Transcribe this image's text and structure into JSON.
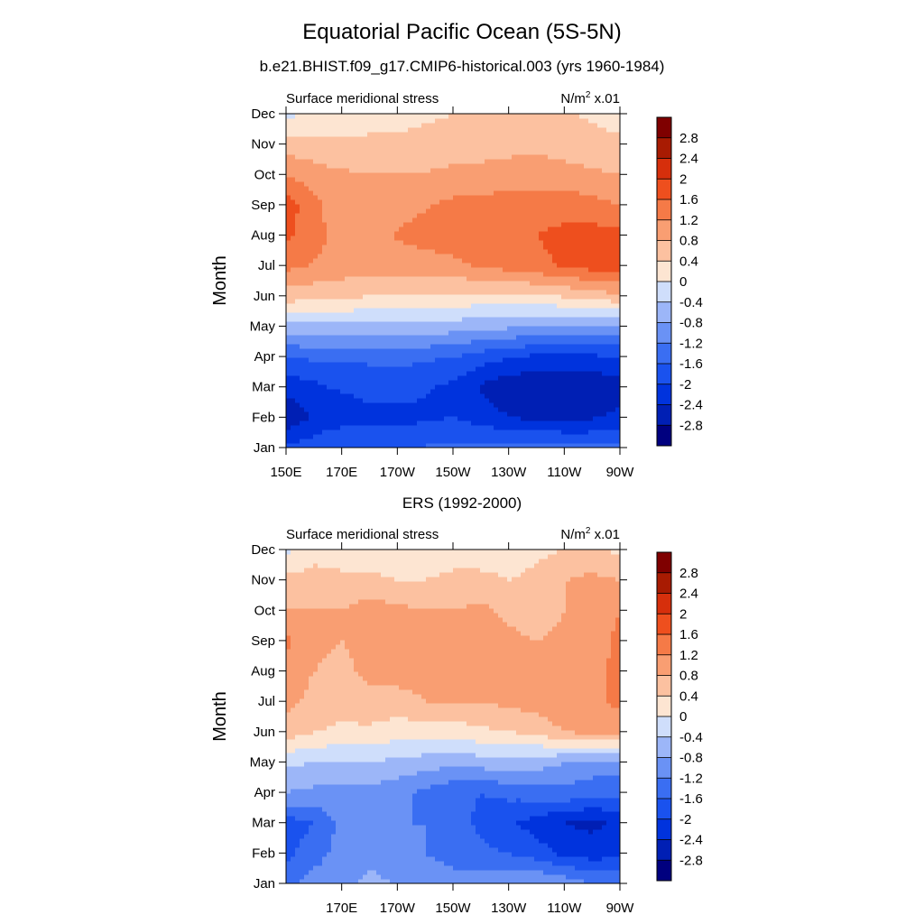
{
  "title": "Equatorial Pacific Ocean (5S-5N)",
  "subtitle": "b.e21.BHIST.f09_g17.CMIP6-historical.003 (yrs 1960-1984)",
  "chart_data": [
    {
      "type": "heatmap",
      "title": "",
      "panel_label": "Surface meridional stress",
      "units_base": "N/m",
      "units_sup": "2",
      "units_suffix": " x.01",
      "xlabel": "",
      "ylabel": "Month",
      "x_ticks": [
        "150E",
        "170E",
        "170W",
        "150W",
        "130W",
        "110W",
        "90W"
      ],
      "x_tick_values": [
        150,
        170,
        190,
        210,
        230,
        250,
        270
      ],
      "xlim": [
        150,
        270
      ],
      "y_ticks": [
        "Jan",
        "Feb",
        "Mar",
        "Apr",
        "May",
        "Jun",
        "Jul",
        "Aug",
        "Sep",
        "Oct",
        "Nov",
        "Dec"
      ],
      "x": [
        150,
        165,
        180,
        195,
        210,
        225,
        240,
        255,
        270
      ],
      "values": [
        [
          -1.9,
          -1.7,
          -1.6,
          -1.6,
          -1.5,
          -1.4,
          -1.4,
          -1.5,
          -1.5
        ],
        [
          -2.7,
          -2.2,
          -2.1,
          -2.1,
          -2.0,
          -2.3,
          -2.5,
          -2.5,
          -2.3
        ],
        [
          -2.3,
          -2.0,
          -1.9,
          -1.9,
          -2.1,
          -2.6,
          -2.8,
          -2.8,
          -2.6
        ],
        [
          -1.6,
          -1.5,
          -1.5,
          -1.5,
          -1.6,
          -1.9,
          -2.1,
          -2.1,
          -2.0
        ],
        [
          -0.5,
          -0.5,
          -0.5,
          -0.5,
          -0.6,
          -0.7,
          -0.8,
          -0.9,
          -0.9
        ],
        [
          0.6,
          0.5,
          0.4,
          0.4,
          0.3,
          0.3,
          0.3,
          0.5,
          0.7
        ],
        [
          1.3,
          1.1,
          1.0,
          1.0,
          1.1,
          1.3,
          1.5,
          1.7,
          1.9
        ],
        [
          1.7,
          1.2,
          1.1,
          1.3,
          1.4,
          1.5,
          1.6,
          1.8,
          1.7
        ],
        [
          1.8,
          1.1,
          1.0,
          1.1,
          1.3,
          1.4,
          1.4,
          1.4,
          1.2
        ],
        [
          1.2,
          0.9,
          0.8,
          0.8,
          0.9,
          0.9,
          1.0,
          0.9,
          0.8
        ],
        [
          0.6,
          0.5,
          0.5,
          0.5,
          0.6,
          0.7,
          0.7,
          0.6,
          0.5
        ],
        [
          -0.1,
          0.1,
          0.2,
          0.3,
          0.4,
          0.6,
          0.6,
          0.4,
          0.2
        ]
      ],
      "colorbar_levels": [
        -2.8,
        -2.4,
        -2,
        -1.6,
        -1.2,
        -0.8,
        -0.4,
        0,
        0.4,
        0.8,
        1.2,
        1.6,
        2,
        2.4,
        2.8
      ],
      "colorbar_labels": [
        "-2.8",
        "-2.4",
        "-2",
        "-1.6",
        "-1.2",
        "-0.8",
        "-0.4",
        "0",
        "0.4",
        "0.8",
        "1.2",
        "1.6",
        "2",
        "2.4",
        "2.8"
      ],
      "colors": [
        "#00007f",
        "#001fb4",
        "#0033dd",
        "#1a52ee",
        "#3a6ef2",
        "#6a92f5",
        "#9cb6f8",
        "#cfdefb",
        "#fde5d2",
        "#fcc1a0",
        "#f99e72",
        "#f57a47",
        "#ee4f1e",
        "#d62f0c",
        "#a81b02",
        "#7f0000"
      ]
    },
    {
      "type": "heatmap",
      "title": "ERS (1992-2000)",
      "panel_label": "Surface meridional stress",
      "units_base": "N/m",
      "units_sup": "2",
      "units_suffix": " x.01",
      "xlabel": "",
      "ylabel": "Month",
      "x_ticks": [
        "170E",
        "170W",
        "150W",
        "130W",
        "110W",
        "90W"
      ],
      "x_tick_values": [
        170,
        190,
        210,
        230,
        250,
        270
      ],
      "xlim": [
        150,
        270
      ],
      "y_ticks": [
        "Jan",
        "Feb",
        "Mar",
        "Apr",
        "May",
        "Jun",
        "Jul",
        "Aug",
        "Sep",
        "Oct",
        "Nov",
        "Dec"
      ],
      "x": [
        150,
        160,
        170,
        180,
        190,
        200,
        210,
        220,
        230,
        240,
        250,
        260,
        270
      ],
      "values": [
        [
          -1.3,
          -1.0,
          -0.9,
          -0.7,
          -0.8,
          -0.9,
          -1.0,
          -1.0,
          -0.8,
          -0.8,
          -0.9,
          -1.2,
          -1.3
        ],
        [
          -1.7,
          -1.4,
          -1.0,
          -0.9,
          -1.1,
          -1.2,
          -1.4,
          -1.5,
          -1.6,
          -1.8,
          -2.1,
          -2.2,
          -2.1
        ],
        [
          -1.8,
          -1.6,
          -1.1,
          -1.0,
          -1.2,
          -1.2,
          -1.4,
          -1.7,
          -1.9,
          -2.2,
          -2.4,
          -2.5,
          -2.3
        ],
        [
          -0.8,
          -0.9,
          -0.9,
          -0.9,
          -1.1,
          -1.3,
          -1.5,
          -1.6,
          -1.5,
          -1.4,
          -1.3,
          -1.5,
          -1.5
        ],
        [
          -0.3,
          -0.4,
          -0.4,
          -0.4,
          -0.5,
          -0.6,
          -0.7,
          -0.6,
          -0.5,
          -0.6,
          -0.8,
          -0.9,
          -0.9
        ],
        [
          0.6,
          0.4,
          0.3,
          0.3,
          0.2,
          0.2,
          0.2,
          0.3,
          0.4,
          0.5,
          0.8,
          0.9,
          0.9
        ],
        [
          0.9,
          0.7,
          0.6,
          0.7,
          0.6,
          0.8,
          0.8,
          0.8,
          0.9,
          1.0,
          1.2,
          1.1,
          1.3
        ],
        [
          1.0,
          0.8,
          0.7,
          0.9,
          1.0,
          1.0,
          1.0,
          1.0,
          1.0,
          1.0,
          1.1,
          1.1,
          1.3
        ],
        [
          1.3,
          0.9,
          0.8,
          0.9,
          1.0,
          0.9,
          1.0,
          1.0,
          0.9,
          0.8,
          0.9,
          1.0,
          1.3
        ],
        [
          0.8,
          0.8,
          0.8,
          1.0,
          0.9,
          0.8,
          0.8,
          0.9,
          0.7,
          0.6,
          0.8,
          0.9,
          1.2
        ],
        [
          0.5,
          0.6,
          0.5,
          0.5,
          0.4,
          0.4,
          0.5,
          0.5,
          0.4,
          0.5,
          0.8,
          0.9,
          0.8
        ],
        [
          -0.1,
          0.2,
          0.2,
          0.1,
          0.1,
          0.1,
          0.2,
          0.2,
          0.2,
          0.3,
          0.4,
          0.5,
          0.3
        ]
      ],
      "colorbar_levels": [
        -2.8,
        -2.4,
        -2,
        -1.6,
        -1.2,
        -0.8,
        -0.4,
        0,
        0.4,
        0.8,
        1.2,
        1.6,
        2,
        2.4,
        2.8
      ],
      "colorbar_labels": [
        "-2.8",
        "-2.4",
        "-2",
        "-1.6",
        "-1.2",
        "-0.8",
        "-0.4",
        "0",
        "0.4",
        "0.8",
        "1.2",
        "1.6",
        "2",
        "2.4",
        "2.8"
      ],
      "colors": [
        "#00007f",
        "#001fb4",
        "#0033dd",
        "#1a52ee",
        "#3a6ef2",
        "#6a92f5",
        "#9cb6f8",
        "#cfdefb",
        "#fde5d2",
        "#fcc1a0",
        "#f99e72",
        "#f57a47",
        "#ee4f1e",
        "#d62f0c",
        "#a81b02",
        "#7f0000"
      ]
    }
  ]
}
